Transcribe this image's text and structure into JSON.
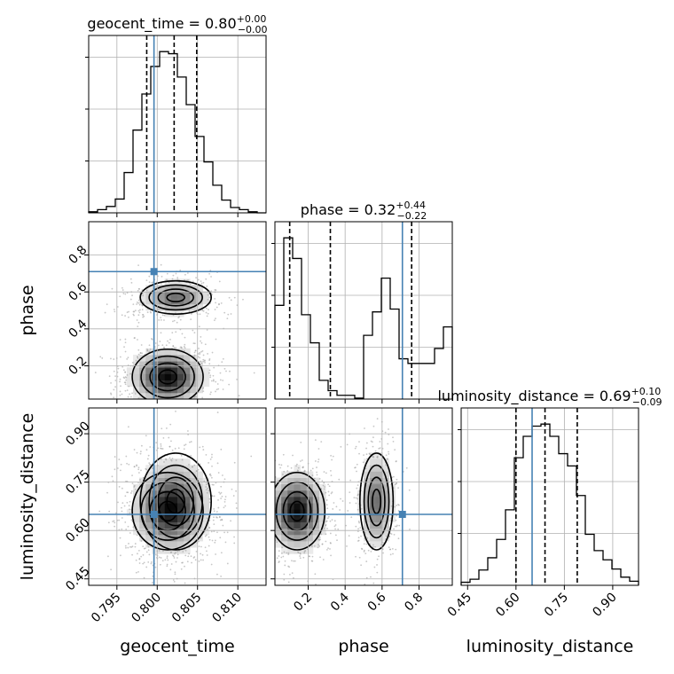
{
  "chart_data": {
    "type": "corner",
    "grid": true,
    "parameters": [
      "geocent_time",
      "phase",
      "luminosity_distance"
    ],
    "colors": {
      "truth": "#4682b4",
      "hist": "#000000",
      "density": "#000000",
      "points": "#999999"
    },
    "ranges": {
      "geocent_time": [
        0.7915,
        0.8135
      ],
      "phase": [
        0.02,
        0.98
      ],
      "luminosity_distance": [
        0.43,
        0.98
      ]
    },
    "ticks": {
      "geocent_time": {
        "values": [
          0.795,
          0.8,
          0.805,
          0.81
        ],
        "labels": [
          "0.795",
          "0.800",
          "0.805",
          "0.810"
        ]
      },
      "phase": {
        "values": [
          0.2,
          0.4,
          0.6,
          0.8
        ],
        "labels": [
          "0.2",
          "0.4",
          "0.6",
          "0.8"
        ]
      },
      "luminosity_distance": {
        "values": [
          0.45,
          0.6,
          0.75,
          0.9
        ],
        "labels": [
          "0.45",
          "0.60",
          "0.75",
          "0.90"
        ]
      }
    },
    "axis_labels": {
      "geocent_time": "geocent_time",
      "phase": "phase",
      "luminosity_distance": "luminosity_distance"
    },
    "truths": {
      "geocent_time": 0.7996,
      "phase": 0.71,
      "luminosity_distance": 0.65
    },
    "titles": {
      "geocent_time": {
        "text": "geocent_time = 0.80",
        "plus": "+0.00",
        "minus": "−0.00"
      },
      "phase": {
        "text": "phase = 0.32",
        "plus": "+0.44",
        "minus": "−0.22"
      },
      "luminosity_distance": {
        "text": "luminosity_distance = 0.69",
        "plus": "+0.10",
        "minus": "−0.09"
      }
    },
    "quantiles": {
      "geocent_time": [
        0.7987,
        0.8021,
        0.8049
      ],
      "phase": [
        0.1,
        0.32,
        0.76
      ],
      "luminosity_distance": [
        0.6,
        0.69,
        0.79
      ]
    },
    "histograms": {
      "geocent_time": {
        "edges": [
          0.7915,
          0.7926,
          0.7937,
          0.7948,
          0.7959,
          0.797,
          0.7981,
          0.7992,
          0.8003,
          0.8014,
          0.8025,
          0.8036,
          0.8047,
          0.8058,
          0.8069,
          0.808,
          0.8091,
          0.8102,
          0.8113,
          0.8124,
          0.8135
        ],
        "counts": [
          1,
          3,
          6,
          13,
          38,
          78,
          112,
          138,
          152,
          150,
          128,
          102,
          72,
          48,
          26,
          12,
          5,
          3,
          1,
          0
        ]
      },
      "phase": {
        "edges": [
          0.02,
          0.068,
          0.116,
          0.164,
          0.212,
          0.26,
          0.308,
          0.356,
          0.404,
          0.452,
          0.5,
          0.548,
          0.596,
          0.644,
          0.692,
          0.74,
          0.788,
          0.836,
          0.884,
          0.932,
          0.98
        ],
        "counts": [
          100,
          172,
          150,
          90,
          60,
          20,
          9,
          4,
          4,
          1,
          68,
          93,
          129,
          96,
          43,
          38,
          38,
          38,
          54,
          77
        ]
      },
      "luminosity_distance": {
        "edges": [
          0.43,
          0.4575,
          0.485,
          0.5125,
          0.54,
          0.5675,
          0.595,
          0.6225,
          0.65,
          0.6775,
          0.705,
          0.7325,
          0.76,
          0.7875,
          0.815,
          0.8425,
          0.87,
          0.8975,
          0.925,
          0.9525,
          0.98
        ],
        "counts": [
          3,
          6,
          15,
          27,
          45,
          74,
          125,
          146,
          156,
          158,
          146,
          129,
          117,
          88,
          50,
          34,
          25,
          16,
          8,
          4
        ]
      }
    },
    "modes": [
      {
        "geocent_time": 0.8023,
        "phase": 0.57,
        "luminosity_distance": 0.69,
        "sigma_time": 0.0022,
        "sigma_phase": 0.045,
        "sigma_distance": 0.075,
        "weight": 0.38
      },
      {
        "geocent_time": 0.8013,
        "phase": 0.14,
        "luminosity_distance": 0.66,
        "sigma_time": 0.0022,
        "sigma_phase": 0.075,
        "sigma_distance": 0.06,
        "weight": 0.62
      }
    ]
  }
}
